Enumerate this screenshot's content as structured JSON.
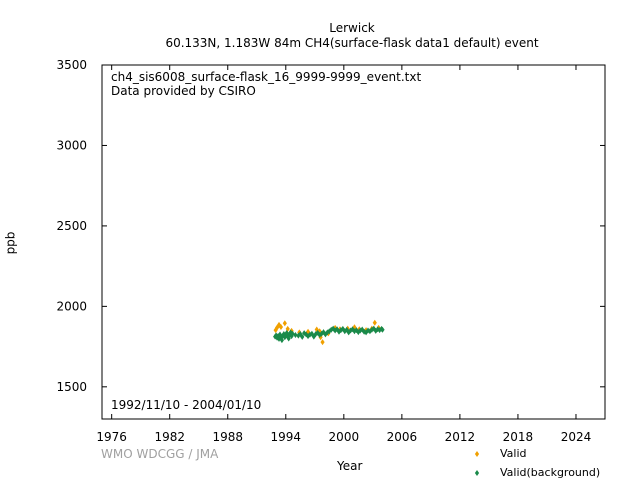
{
  "header": {
    "station": "Lerwick",
    "subtitle": "60.133N, 1.183W 84m    CH4(surface-flask data1 default) event"
  },
  "chart_data": {
    "type": "scatter",
    "file_label": "ch4_sis6008_surface-flask_16_9999-9999_event.txt",
    "provider": "Data provided by CSIRO",
    "date_range": "1992/11/10 - 2004/01/10",
    "xlabel": "Year",
    "ylabel": "ppb",
    "xlim": [
      1975,
      2027
    ],
    "ylim": [
      1300,
      3500
    ],
    "xticks": [
      1976,
      1982,
      1988,
      1994,
      2000,
      2006,
      2012,
      2018,
      2024
    ],
    "yticks": [
      1500,
      2000,
      2500,
      3000,
      3500
    ],
    "legend_position": "bottom-right",
    "series": [
      {
        "name": "Valid",
        "color": "#f0a000",
        "marker": "diamond",
        "points": [
          [
            1992.95,
            1852
          ],
          [
            1993.1,
            1868
          ],
          [
            1993.3,
            1885
          ],
          [
            1993.5,
            1872
          ],
          [
            1993.9,
            1895
          ],
          [
            1994.2,
            1860
          ],
          [
            1994.6,
            1848
          ],
          [
            1995.4,
            1838
          ],
          [
            1996.3,
            1842
          ],
          [
            1997.2,
            1856
          ],
          [
            1997.5,
            1845
          ],
          [
            1997.6,
            1808
          ],
          [
            1997.8,
            1778
          ],
          [
            1998.4,
            1832
          ],
          [
            1999.1,
            1866
          ],
          [
            1999.6,
            1858
          ],
          [
            2000.4,
            1862
          ],
          [
            2001.1,
            1870
          ],
          [
            2001.6,
            1858
          ],
          [
            2002.3,
            1852
          ],
          [
            2002.9,
            1862
          ],
          [
            2003.2,
            1898
          ],
          [
            2003.6,
            1866
          ]
        ]
      },
      {
        "name": "Valid(background)",
        "color": "#1a8a4a",
        "marker": "diamond",
        "points": [
          [
            1992.9,
            1812
          ],
          [
            1993.0,
            1820
          ],
          [
            1993.1,
            1805
          ],
          [
            1993.2,
            1815
          ],
          [
            1993.3,
            1798
          ],
          [
            1993.4,
            1825
          ],
          [
            1993.5,
            1810
          ],
          [
            1993.6,
            1790
          ],
          [
            1993.7,
            1818
          ],
          [
            1993.8,
            1828
          ],
          [
            1993.9,
            1808
          ],
          [
            1994.0,
            1822
          ],
          [
            1994.1,
            1835
          ],
          [
            1994.2,
            1812
          ],
          [
            1994.3,
            1800
          ],
          [
            1994.4,
            1826
          ],
          [
            1994.5,
            1838
          ],
          [
            1994.6,
            1815
          ],
          [
            1994.7,
            1830
          ],
          [
            1995.0,
            1822
          ],
          [
            1995.3,
            1818
          ],
          [
            1995.5,
            1828
          ],
          [
            1995.7,
            1810
          ],
          [
            1995.9,
            1834
          ],
          [
            1996.1,
            1826
          ],
          [
            1996.3,
            1815
          ],
          [
            1996.5,
            1824
          ],
          [
            1996.7,
            1830
          ],
          [
            1996.9,
            1812
          ],
          [
            1997.1,
            1828
          ],
          [
            1997.3,
            1835
          ],
          [
            1997.5,
            1822
          ],
          [
            1997.7,
            1830
          ],
          [
            1997.9,
            1840
          ],
          [
            1998.1,
            1826
          ],
          [
            1998.3,
            1838
          ],
          [
            1998.5,
            1845
          ],
          [
            1998.7,
            1855
          ],
          [
            1998.9,
            1862
          ],
          [
            1999.1,
            1850
          ],
          [
            1999.3,
            1858
          ],
          [
            1999.5,
            1842
          ],
          [
            1999.7,
            1852
          ],
          [
            1999.9,
            1860
          ],
          [
            2000.1,
            1845
          ],
          [
            2000.3,
            1855
          ],
          [
            2000.5,
            1838
          ],
          [
            2000.7,
            1850
          ],
          [
            2000.9,
            1858
          ],
          [
            2001.1,
            1845
          ],
          [
            2001.3,
            1852
          ],
          [
            2001.5,
            1840
          ],
          [
            2001.7,
            1850
          ],
          [
            2001.9,
            1856
          ],
          [
            2002.1,
            1842
          ],
          [
            2002.3,
            1838
          ],
          [
            2002.5,
            1850
          ],
          [
            2002.7,
            1845
          ],
          [
            2002.9,
            1855
          ],
          [
            2003.1,
            1862
          ],
          [
            2003.3,
            1848
          ],
          [
            2003.5,
            1858
          ],
          [
            2003.7,
            1852
          ],
          [
            2003.9,
            1860
          ],
          [
            2004.0,
            1855
          ]
        ]
      }
    ]
  },
  "footer": {
    "watermark": "WMO WDCGG / JMA"
  }
}
